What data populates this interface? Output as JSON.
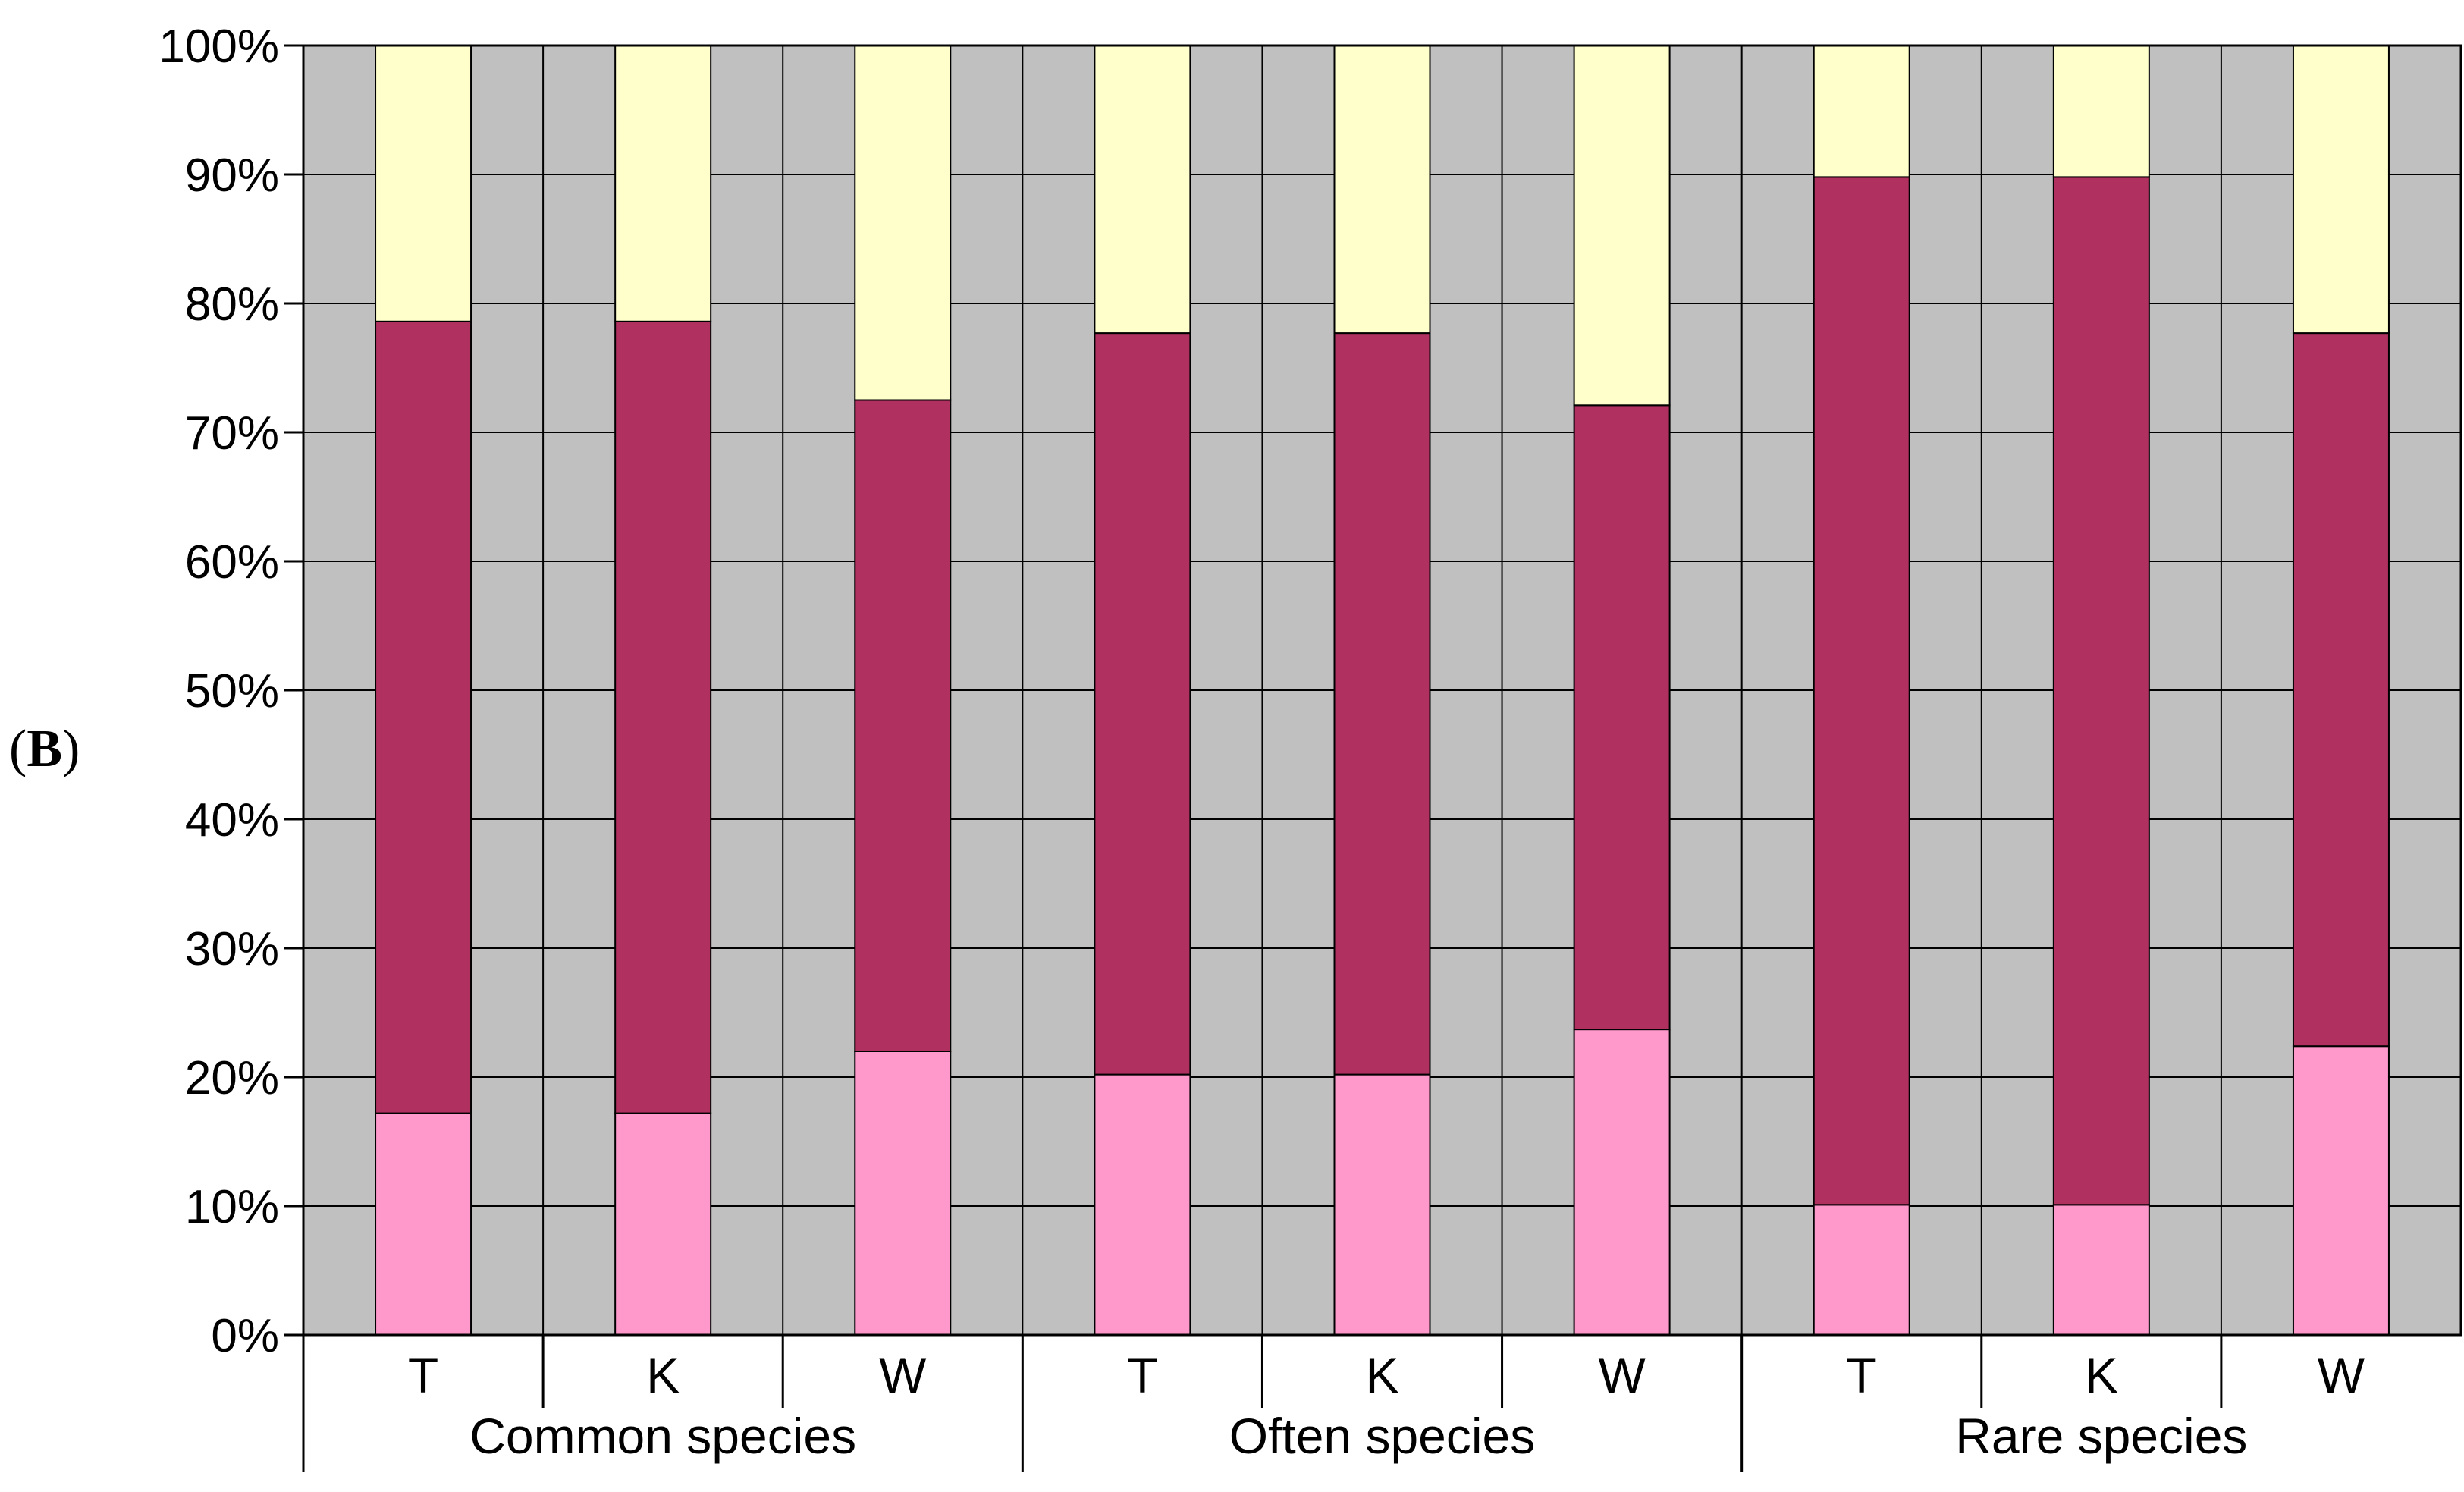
{
  "panel_label": {
    "open": "(",
    "letter": "B",
    "close": ")"
  },
  "colors": {
    "background": "#c0c0c0",
    "gridline": "#000000",
    "bottom_segment": "#ff99cc",
    "middle_segment": "#b03060",
    "top_segment": "#ffffcc"
  },
  "chart_data": {
    "type": "bar",
    "stacked": true,
    "percent_stacked": true,
    "title": "",
    "xlabel": "",
    "ylabel": "",
    "ylim": [
      0,
      100
    ],
    "y_ticks": [
      0,
      10,
      20,
      30,
      40,
      50,
      60,
      70,
      80,
      90,
      100
    ],
    "y_tick_labels": [
      "0%",
      "10%",
      "20%",
      "30%",
      "40%",
      "50%",
      "60%",
      "70%",
      "80%",
      "90%",
      "100%"
    ],
    "grid": true,
    "legend": "none",
    "groups": [
      "Common species",
      "Often species",
      "Rare species"
    ],
    "categories": [
      "T",
      "K",
      "W",
      "T",
      "K",
      "W",
      "T",
      "K",
      "W"
    ],
    "series": [
      {
        "name": "bottom",
        "color": "#ff99cc",
        "values": [
          17.2,
          17.2,
          22.0,
          20.2,
          20.2,
          23.7,
          10.1,
          10.1,
          22.4
        ]
      },
      {
        "name": "middle",
        "color": "#b03060",
        "values": [
          61.4,
          61.4,
          50.5,
          57.5,
          57.5,
          48.4,
          79.7,
          79.7,
          55.3
        ]
      },
      {
        "name": "top",
        "color": "#ffffcc",
        "values": [
          21.4,
          21.4,
          27.5,
          22.3,
          22.3,
          27.9,
          10.2,
          10.2,
          22.3
        ]
      }
    ]
  }
}
